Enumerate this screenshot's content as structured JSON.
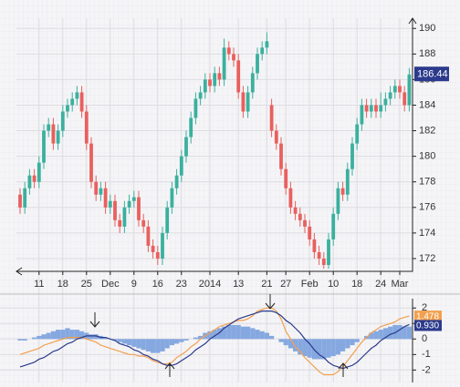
{
  "chart_data": {
    "type": "candlestick",
    "categories": [
      null,
      null,
      null,
      null,
      "11",
      null,
      null,
      null,
      null,
      "18",
      null,
      null,
      null,
      null,
      "25",
      null,
      null,
      null,
      null,
      "Dec",
      null,
      null,
      null,
      null,
      "9",
      null,
      null,
      null,
      null,
      "16",
      null,
      null,
      null,
      null,
      "23",
      null,
      null,
      null,
      null,
      null,
      "2014",
      null,
      null,
      null,
      null,
      null,
      "13",
      null,
      null,
      null,
      null,
      null,
      "21",
      null,
      null,
      null,
      "27",
      null,
      null,
      null,
      null,
      "Feb",
      null,
      null,
      null,
      null,
      "10",
      null,
      null,
      null,
      null,
      "18",
      null,
      null,
      null,
      null,
      "24",
      null,
      null,
      null,
      "Mar",
      null,
      null
    ],
    "open": [
      177,
      176,
      177.5,
      178.5,
      178,
      179.5,
      182,
      182.5,
      181,
      182,
      183.5,
      184,
      184.5,
      185,
      183.5,
      181,
      178,
      177,
      177.5,
      176,
      176.5,
      175,
      174.5,
      176,
      176.5,
      176.8,
      175,
      174.5,
      173,
      172.5,
      172,
      174,
      176,
      177.5,
      178.5,
      180,
      181.5,
      183,
      184.5,
      185,
      186,
      185.5,
      186.5,
      186,
      188.5,
      188,
      187.5,
      185,
      183.5,
      185,
      186.5,
      188,
      188.5,
      184,
      182,
      181,
      179,
      177.5,
      176,
      175.5,
      175,
      174.5,
      173.5,
      172.5,
      172,
      171.5,
      173.5,
      175.5,
      177.5,
      177,
      179,
      181,
      182.5,
      184,
      183.5,
      184,
      183.5,
      184,
      184.5,
      185,
      185.5,
      185,
      184
    ],
    "high": [
      177.5,
      178,
      179,
      179,
      180,
      182.5,
      183,
      183,
      182.5,
      184,
      184.5,
      185,
      185.5,
      185.5,
      184,
      181.5,
      178.5,
      178,
      178,
      177,
      177,
      175.5,
      176.5,
      177,
      177.3,
      177.3,
      175.5,
      175,
      173.5,
      173,
      174.5,
      176.5,
      178,
      179,
      180.5,
      182,
      183.5,
      185,
      185.5,
      186.5,
      186.5,
      187,
      187,
      189.2,
      189,
      188.5,
      188,
      185.5,
      185.5,
      187,
      188.5,
      189,
      189.7,
      184.5,
      182.5,
      181.5,
      179.5,
      178,
      176.5,
      176,
      175.5,
      175,
      174,
      173,
      172.5,
      174,
      176,
      178,
      178,
      179.5,
      181.5,
      183,
      184.5,
      184.5,
      184.5,
      184.5,
      185,
      185,
      185.5,
      186,
      186,
      185.5,
      186.9
    ],
    "low": [
      175.5,
      175.5,
      177,
      177.5,
      177.5,
      179,
      181.5,
      180.5,
      180.5,
      181.5,
      183,
      183.5,
      184,
      183,
      180.5,
      177.5,
      176.5,
      176.5,
      175.5,
      175.5,
      174.5,
      174,
      174,
      175.5,
      176,
      174.5,
      174,
      172.5,
      172,
      171.5,
      171.5,
      173.5,
      175.5,
      177,
      178,
      179.5,
      181,
      182.5,
      184,
      184.5,
      185,
      185,
      185.5,
      185.5,
      187.5,
      187,
      184.5,
      183,
      183,
      184.5,
      186,
      187.5,
      188,
      181.5,
      180.5,
      178.5,
      177,
      175.5,
      175,
      174.5,
      174,
      173,
      172,
      171.5,
      171.2,
      171.2,
      173,
      175,
      176.5,
      176.5,
      178.5,
      180.5,
      182,
      183,
      183,
      183,
      183,
      183.5,
      184,
      184.5,
      184.5,
      183.5,
      183.5
    ],
    "close": [
      176,
      177.5,
      178.5,
      178,
      179.5,
      182,
      182.5,
      181,
      182,
      183.5,
      184,
      184.5,
      185,
      183.5,
      181,
      178,
      177,
      177.5,
      176,
      176.5,
      175,
      174.5,
      176,
      176.5,
      176.8,
      175,
      174.5,
      173,
      172.5,
      172,
      174,
      176,
      177.5,
      178.5,
      180,
      181.5,
      183,
      184.5,
      185,
      186,
      185.5,
      186.5,
      186,
      188.5,
      188,
      187.5,
      185,
      183.5,
      185,
      186.5,
      188,
      188.5,
      189,
      182,
      181,
      179,
      177.5,
      176,
      175.5,
      175,
      174.5,
      173.5,
      172.5,
      172,
      171.5,
      173.5,
      175.5,
      177.5,
      177,
      179,
      181,
      182.5,
      184,
      183.5,
      184,
      183.5,
      184,
      184.5,
      185,
      185.5,
      185,
      184,
      186.4
    ],
    "up_color": "#3bb09e",
    "down_color": "#e8605e",
    "ylim": [
      171,
      190.8
    ],
    "yticks": [
      172,
      174,
      176,
      178,
      180,
      182,
      184,
      186,
      188,
      190
    ],
    "grid": true,
    "last_price": 186.44,
    "last_price_color": "#2b3a8c",
    "indicator": {
      "type": "macd",
      "hist": [
        -0.1,
        -0.1,
        0.0,
        0.1,
        0.2,
        0.3,
        0.4,
        0.5,
        0.6,
        0.6,
        0.7,
        0.6,
        0.6,
        0.5,
        0.4,
        0.3,
        0.3,
        0.2,
        0.1,
        0.0,
        -0.1,
        -0.2,
        -0.3,
        -0.4,
        -0.5,
        -0.6,
        -0.7,
        -0.8,
        -0.9,
        -0.9,
        -0.8,
        -0.6,
        -0.4,
        -0.3,
        -0.2,
        -0.1,
        0.0,
        0.1,
        0.2,
        0.4,
        0.5,
        0.6,
        0.7,
        0.8,
        0.9,
        0.9,
        0.9,
        0.8,
        0.8,
        0.7,
        0.6,
        0.5,
        0.4,
        0.2,
        0.0,
        -0.2,
        -0.4,
        -0.6,
        -0.8,
        -1.0,
        -1.1,
        -1.2,
        -1.3,
        -1.3,
        -1.3,
        -1.2,
        -1.1,
        -1.0,
        -0.8,
        -0.6,
        -0.4,
        -0.2,
        0.0,
        0.2,
        0.4,
        0.5,
        0.6,
        0.7,
        0.8,
        0.9,
        0.9,
        0.8,
        0.8
      ],
      "hist_color": "#86a8e0",
      "lines": [
        {
          "color": "#f2a04e",
          "values": [
            -1.0,
            -0.9,
            -0.8,
            -0.7,
            -0.6,
            -0.4,
            -0.3,
            -0.2,
            -0.1,
            0.0,
            0.1,
            0.1,
            0.1,
            0.1,
            0.0,
            -0.1,
            -0.2,
            -0.4,
            -0.5,
            -0.6,
            -0.7,
            -0.8,
            -0.9,
            -1.0,
            -1.0,
            -1.1,
            -1.1,
            -1.2,
            -1.4,
            -1.5,
            -1.6,
            -1.6,
            -1.5,
            -1.2,
            -1.0,
            -0.8,
            -0.5,
            -0.3,
            0.0,
            0.2,
            0.4,
            0.6,
            0.8,
            0.9,
            1.0,
            1.1,
            1.2,
            1.2,
            1.3,
            1.5,
            1.8,
            1.9,
            2.0,
            2.0,
            1.8,
            1.3,
            0.5,
            0.0,
            -0.5,
            -0.8,
            -1.2,
            -1.5,
            -1.8,
            -2.1,
            -2.3,
            -2.3,
            -2.3,
            -2.1,
            -1.8,
            -1.4,
            -1.0,
            -0.6,
            -0.2,
            0.1,
            0.4,
            0.6,
            0.8,
            0.9,
            1.0,
            1.1,
            1.3,
            1.4,
            1.478
          ]
        },
        {
          "color": "#2b3a8c",
          "end_label": "0.930",
          "values": [
            -1.8,
            -1.7,
            -1.6,
            -1.5,
            -1.3,
            -1.2,
            -1.0,
            -0.8,
            -0.7,
            -0.5,
            -0.3,
            -0.2,
            0.0,
            0.1,
            0.2,
            0.2,
            0.2,
            0.1,
            0.1,
            0.0,
            -0.1,
            -0.3,
            -0.4,
            -0.5,
            -0.7,
            -0.8,
            -1.0,
            -1.1,
            -1.3,
            -1.4,
            -1.6,
            -1.7,
            -1.7,
            -1.6,
            -1.4,
            -1.2,
            -1.0,
            -0.7,
            -0.5,
            -0.3,
            0.0,
            0.2,
            0.4,
            0.7,
            0.9,
            1.1,
            1.3,
            1.4,
            1.5,
            1.6,
            1.7,
            1.8,
            1.8,
            1.8,
            1.7,
            1.5,
            1.2,
            1.0,
            0.7,
            0.4,
            0.0,
            -0.3,
            -0.7,
            -1.0,
            -1.2,
            -1.5,
            -1.7,
            -1.8,
            -1.9,
            -1.8,
            -1.7,
            -1.5,
            -1.2,
            -0.9,
            -0.6,
            -0.4,
            -0.1,
            0.1,
            0.3,
            0.4,
            0.6,
            0.8,
            0.93
          ]
        }
      ],
      "ylim": [
        -2.8,
        2.6
      ],
      "yticks": [
        -2,
        -1,
        0,
        1,
        2
      ]
    }
  }
}
